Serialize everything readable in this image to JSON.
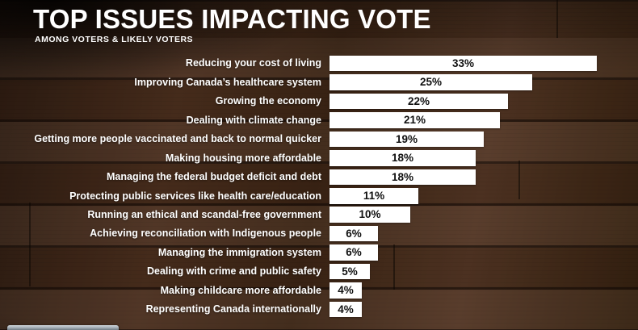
{
  "header": {
    "title": "TOP ISSUES IMPACTING VOTE",
    "subtitle": "AMONG VOTERS & LIKELY VOTERS"
  },
  "chart_data": {
    "type": "bar",
    "orientation": "horizontal",
    "title": "TOP ISSUES IMPACTING VOTE",
    "subtitle": "AMONG VOTERS & LIKELY VOTERS",
    "unit": "%",
    "xlim": [
      0,
      33
    ],
    "grid": false,
    "legend": false,
    "categories": [
      "Reducing your cost of living",
      "Improving Canada’s healthcare system",
      "Growing the economy",
      "Dealing with climate change",
      "Getting more people vaccinated and back to normal quicker",
      "Making housing more affordable",
      "Managing the federal budget deficit and debt",
      "Protecting public services like health care/education",
      "Running an ethical and scandal-free government",
      "Achieving reconciliation with Indigenous people",
      "Managing the immigration system",
      "Dealing with crime and public safety",
      "Making childcare more affordable",
      "Representing Canada internationally"
    ],
    "values": [
      33,
      25,
      22,
      21,
      19,
      18,
      18,
      11,
      10,
      6,
      6,
      5,
      4,
      4
    ],
    "value_labels": [
      "33%",
      "25%",
      "22%",
      "21%",
      "19%",
      "18%",
      "18%",
      "11%",
      "10%",
      "6%",
      "6%",
      "5%",
      "4%",
      "4%"
    ],
    "bar_color": "#ffffff",
    "bar_text_color": "#101010",
    "category_label_color": "#ffffff",
    "background": "dark wood planks"
  }
}
